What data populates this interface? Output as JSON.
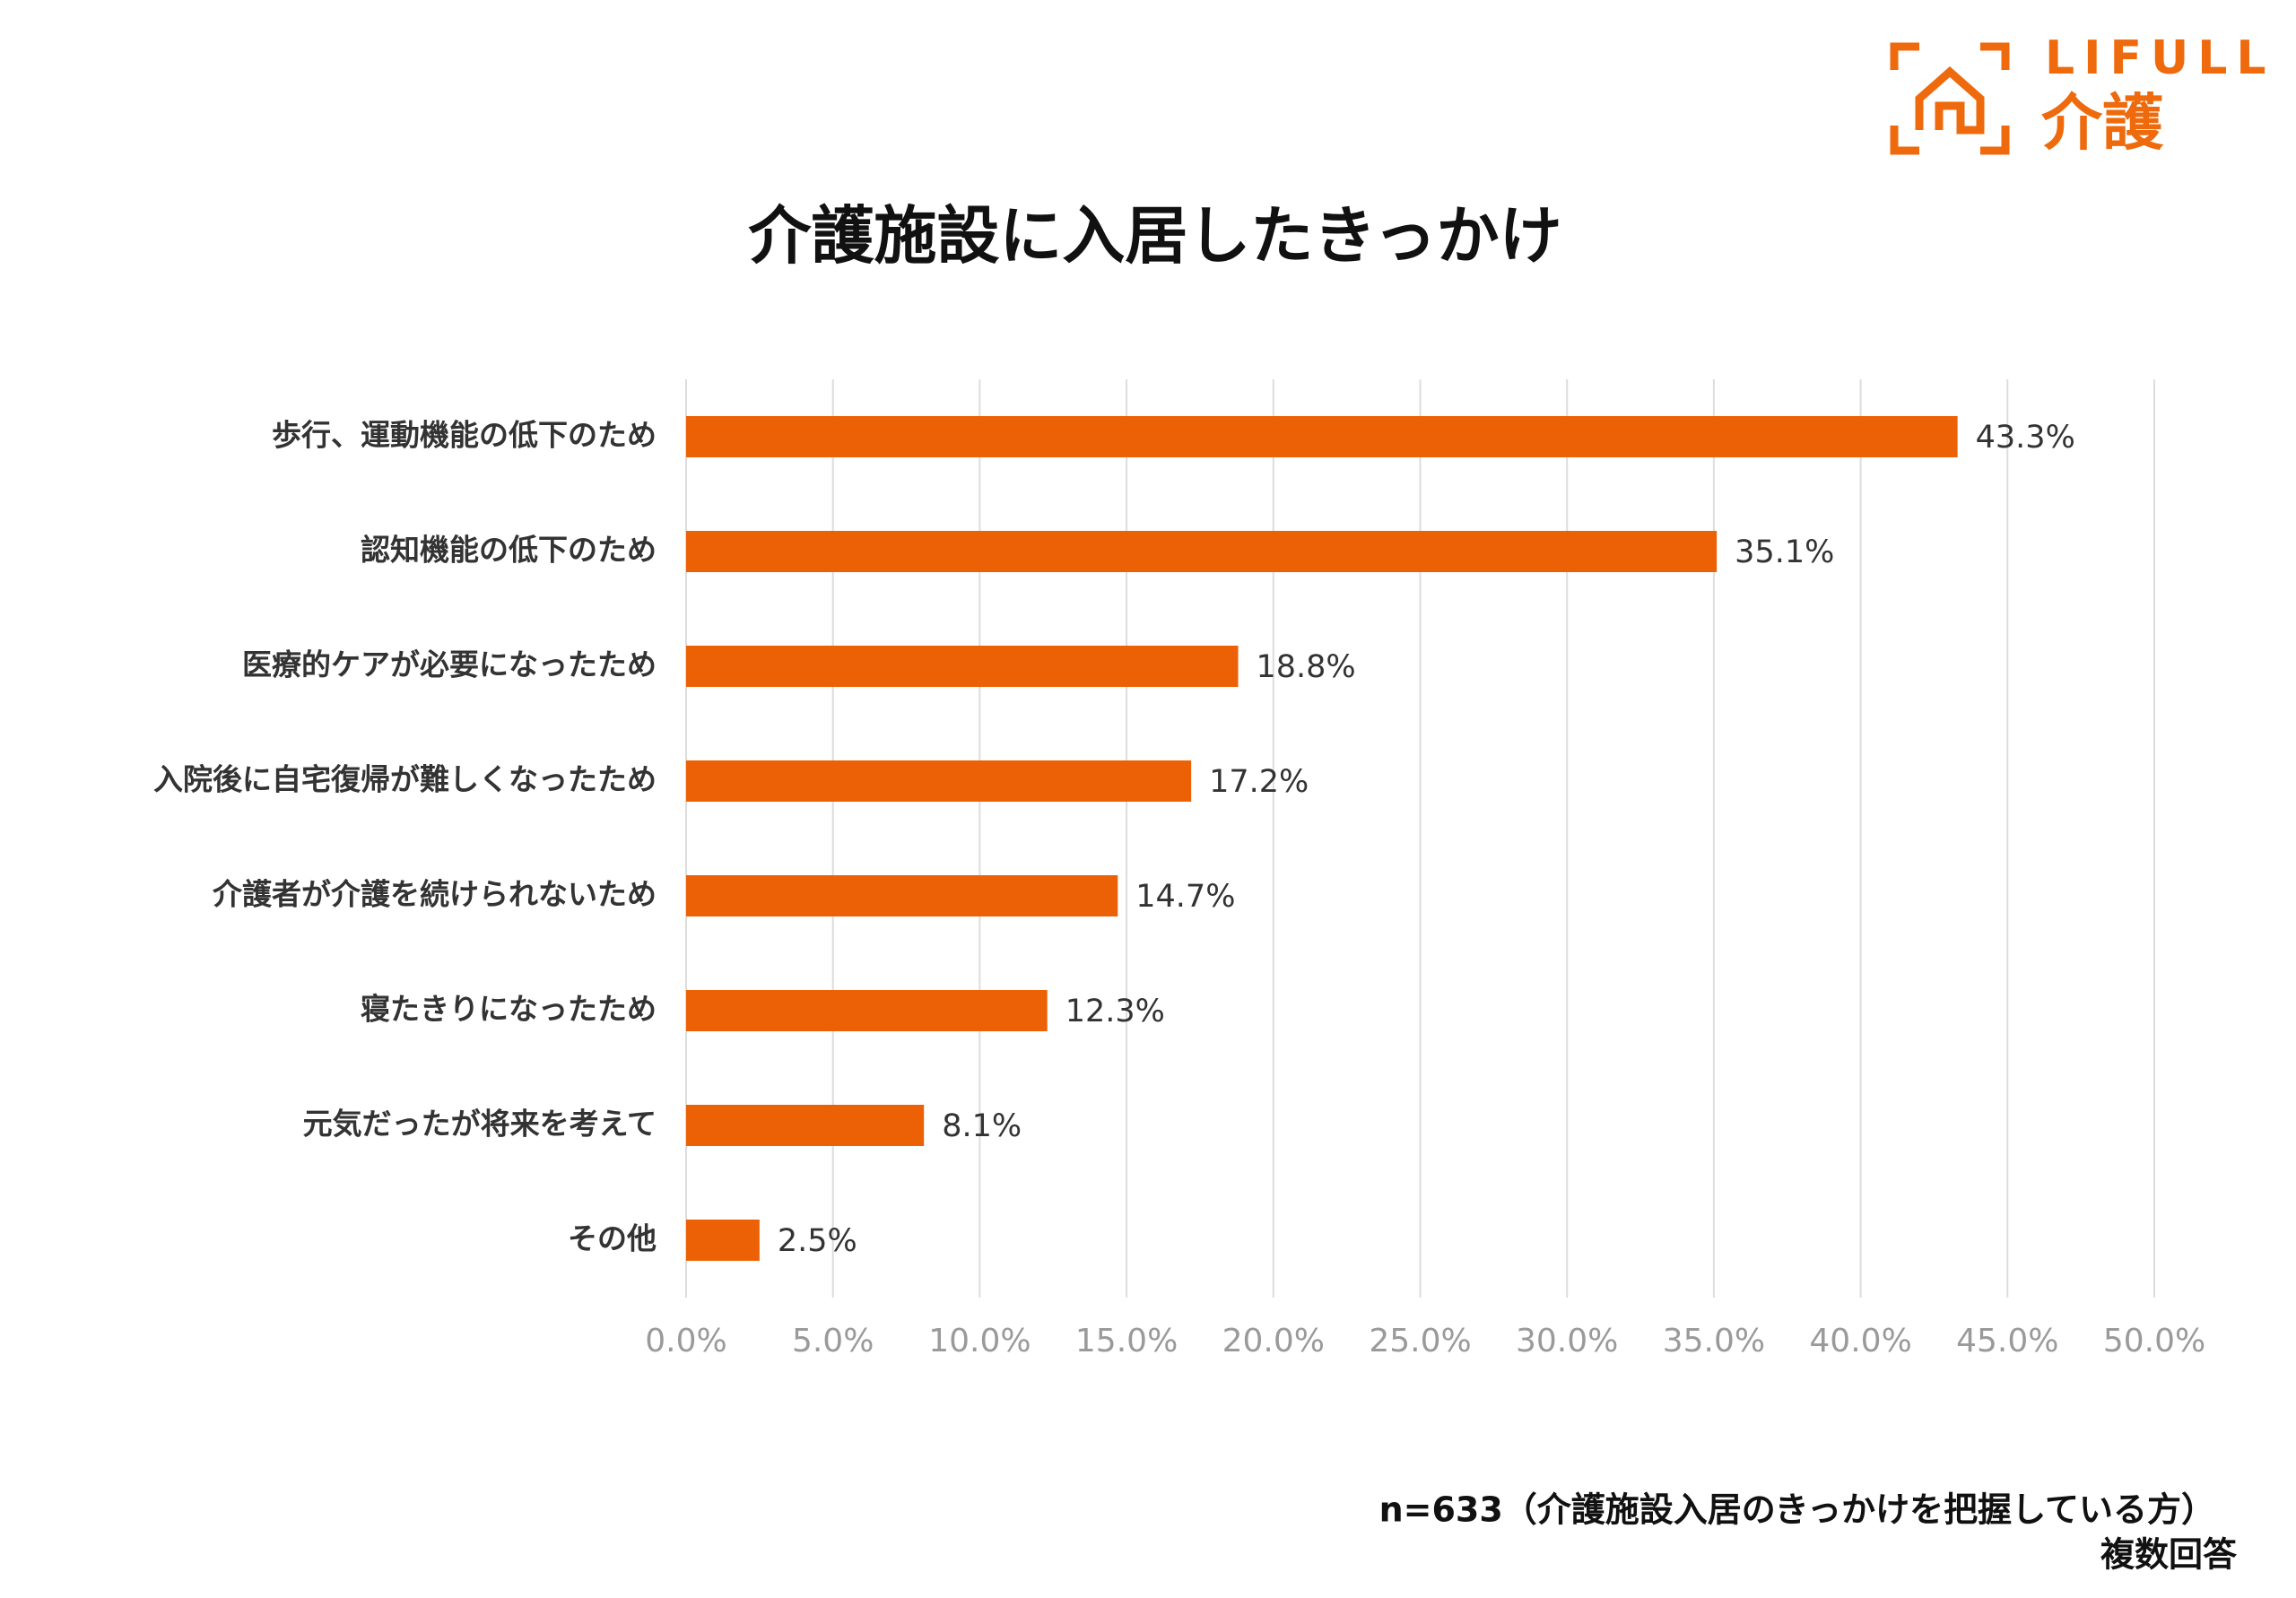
{
  "logo": {
    "brand": "LIFULL",
    "sub": "介護"
  },
  "chart_data": {
    "type": "bar",
    "orientation": "horizontal",
    "title": "介護施設に入居したきっかけ",
    "categories": [
      "歩行、運動機能の低下のため",
      "認知機能の低下のため",
      "医療的ケアが必要になったため",
      "入院後に自宅復帰が難しくなったため",
      "介護者が介護を続けられないため",
      "寝たきりになったため",
      "元気だったが将来を考えて",
      "その他"
    ],
    "values": [
      43.3,
      35.1,
      18.8,
      17.2,
      14.7,
      12.3,
      8.1,
      2.5
    ],
    "value_labels": [
      "43.3%",
      "35.1%",
      "18.8%",
      "17.2%",
      "14.7%",
      "12.3%",
      "8.1%",
      "2.5%"
    ],
    "color": "#ec6105",
    "xlim": [
      0,
      50
    ],
    "xticks": [
      {
        "value": 0,
        "label": "0.0%"
      },
      {
        "value": 5,
        "label": "5.0%"
      },
      {
        "value": 10,
        "label": "10.0%"
      },
      {
        "value": 15,
        "label": "15.0%"
      },
      {
        "value": 20,
        "label": "20.0%"
      },
      {
        "value": 25,
        "label": "25.0%"
      },
      {
        "value": 30,
        "label": "30.0%"
      },
      {
        "value": 35,
        "label": "35.0%"
      },
      {
        "value": 40,
        "label": "40.0%"
      },
      {
        "value": 45,
        "label": "45.0%"
      },
      {
        "value": 50,
        "label": "50.0%"
      }
    ],
    "grid": true,
    "annotations": [
      "n=633（介護施設入居のきっかけを把握している方）",
      "複数回答"
    ]
  }
}
